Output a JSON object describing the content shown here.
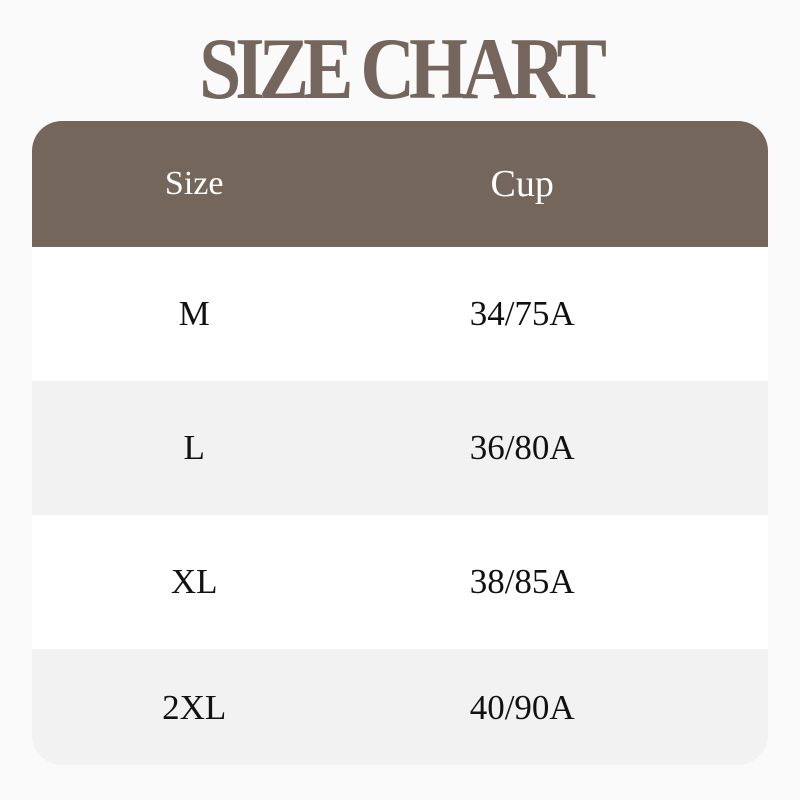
{
  "title": "SIZE CHART",
  "colors": {
    "brand": "#75665c",
    "alt_row": "#f2f2f2"
  },
  "table": {
    "headers": [
      "Size",
      "Cup"
    ],
    "rows": [
      [
        "M",
        "34/75A"
      ],
      [
        "L",
        "36/80A"
      ],
      [
        "XL",
        "38/85A"
      ],
      [
        "2XL",
        "40/90A"
      ]
    ]
  }
}
